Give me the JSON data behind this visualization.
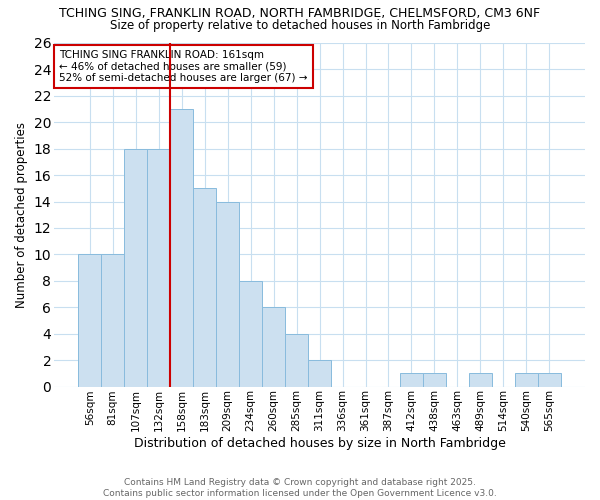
{
  "title_line1": "TCHING SING, FRANKLIN ROAD, NORTH FAMBRIDGE, CHELMSFORD, CM3 6NF",
  "title_line2": "Size of property relative to detached houses in North Fambridge",
  "xlabel": "Distribution of detached houses by size in North Fambridge",
  "ylabel": "Number of detached properties",
  "categories": [
    "56sqm",
    "81sqm",
    "107sqm",
    "132sqm",
    "158sqm",
    "183sqm",
    "209sqm",
    "234sqm",
    "260sqm",
    "285sqm",
    "311sqm",
    "336sqm",
    "361sqm",
    "387sqm",
    "412sqm",
    "438sqm",
    "463sqm",
    "489sqm",
    "514sqm",
    "540sqm",
    "565sqm"
  ],
  "values": [
    10,
    10,
    18,
    18,
    21,
    15,
    14,
    8,
    6,
    4,
    2,
    0,
    0,
    0,
    1,
    1,
    0,
    1,
    0,
    1,
    1
  ],
  "bar_color": "#cce0f0",
  "bar_edge_color": "#88bbdd",
  "property_size_label": "TCHING SING FRANKLIN ROAD: 161sqm",
  "annotation_line2": "← 46% of detached houses are smaller (59)",
  "annotation_line3": "52% of semi-detached houses are larger (67) →",
  "vline_index": 4,
  "vline_color": "#cc0000",
  "ylim": [
    0,
    26
  ],
  "yticks": [
    0,
    2,
    4,
    6,
    8,
    10,
    12,
    14,
    16,
    18,
    20,
    22,
    24,
    26
  ],
  "bg_color": "#ffffff",
  "grid_color": "#c8dff0",
  "footer_line1": "Contains HM Land Registry data © Crown copyright and database right 2025.",
  "footer_line2": "Contains public sector information licensed under the Open Government Licence v3.0."
}
